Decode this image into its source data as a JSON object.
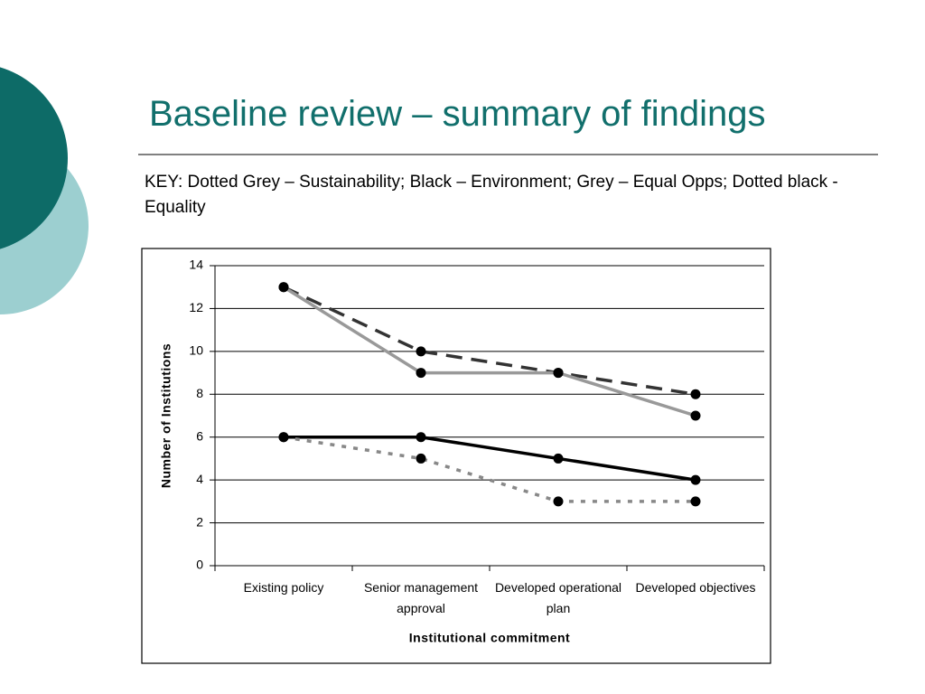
{
  "slide": {
    "title": "Baseline review – summary of findings",
    "key": "KEY: Dotted Grey – Sustainability; Black – Environment; Grey – Equal Opps; Dotted black - Equality"
  },
  "chart_data": {
    "type": "line",
    "x_label": "Institutional commitment",
    "y_label": "Number of Institutions",
    "categories": [
      "Existing policy",
      "Senior management approval",
      "Developed operational plan",
      "Developed objectives"
    ],
    "series": [
      {
        "color": "#333333",
        "dash": "18 10",
        "values": [
          13,
          10,
          9,
          8
        ]
      },
      {
        "color": "#999999",
        "dash": "none",
        "values": [
          13,
          9,
          9,
          7
        ]
      },
      {
        "color": "#000000",
        "dash": "none",
        "values": [
          6,
          6,
          5,
          4
        ]
      },
      {
        "color": "#888888",
        "dash": "5 8",
        "values": [
          6,
          5,
          3,
          3
        ]
      }
    ],
    "marker_color": "#000000",
    "ylim": [
      0,
      14
    ],
    "yticks": [
      0,
      2,
      4,
      6,
      8,
      10,
      12,
      14
    ],
    "grid": true
  }
}
